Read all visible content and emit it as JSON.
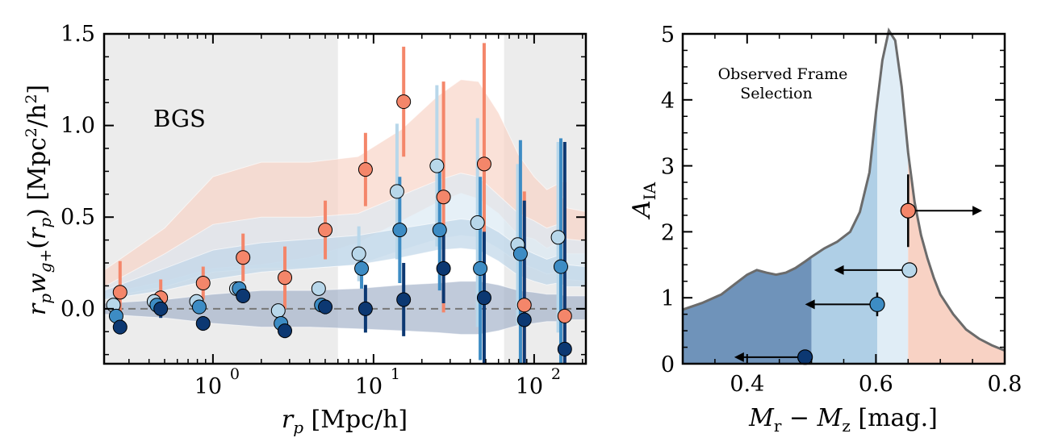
{
  "colors": {
    "orange": "#F4866A",
    "light_blue": "#B8D7EA",
    "mid_blue": "#3D8CC4",
    "dark_blue": "#0C3872",
    "shade_orange": "#F8D4C8",
    "shade_light": "#DCE9F3",
    "shade_mid": "#BFD6E8",
    "shade_dark": "#A5B4CB",
    "excluded_region": "#ECECEC"
  },
  "chart_data": [
    {
      "type": "scatter",
      "annotation": "BGS",
      "xlabel": "r_p [Mpc/h]",
      "ylabel": "r_p w_g+(r_p) [Mpc²/h²]",
      "xscale": "log",
      "xlim": [
        0.21,
        210
      ],
      "ylim": [
        -0.3,
        1.5
      ],
      "xticks": [
        {
          "value": 1,
          "label": "10",
          "exp": "0"
        },
        {
          "value": 10,
          "label": "10",
          "exp": "1"
        },
        {
          "value": 100,
          "label": "10",
          "exp": "2"
        }
      ],
      "yticks": [
        {
          "value": 0.0,
          "label": "0.0"
        },
        {
          "value": 0.5,
          "label": "0.5"
        },
        {
          "value": 1.0,
          "label": "1.0"
        },
        {
          "value": 1.5,
          "label": "1.5"
        }
      ],
      "zero_line": true,
      "excluded_ranges": [
        [
          0.21,
          6.0
        ],
        [
          65,
          210
        ]
      ],
      "series": [
        {
          "color": "orange",
          "offset": 1.1,
          "x": [
            0.24,
            0.43,
            0.79,
            1.4,
            2.55,
            4.55,
            8.1,
            14.0,
            24.8,
            44.4,
            79.0,
            141.0
          ],
          "y": [
            0.09,
            0.06,
            0.14,
            0.28,
            0.17,
            0.43,
            0.76,
            1.13,
            0.61,
            0.79,
            0.02,
            -0.04
          ],
          "err": [
            0.17,
            0.1,
            0.09,
            0.13,
            0.17,
            0.16,
            0.2,
            0.3,
            0.63,
            0.66,
            0.62,
            0.73
          ],
          "band_x": [
            0.21,
            0.5,
            1.0,
            2.0,
            4.0,
            8.0,
            15.0,
            25.0,
            35.0,
            45.0,
            60.0,
            80.0,
            100.0,
            120.0,
            140.0,
            160.0,
            210.0
          ],
          "band_lo": [
            0.08,
            0.15,
            0.22,
            0.24,
            0.28,
            0.36,
            0.48,
            0.58,
            0.63,
            0.6,
            0.52,
            0.4,
            0.38,
            0.33,
            0.36,
            0.3,
            0.3
          ],
          "band_hi": [
            0.21,
            0.44,
            0.72,
            0.8,
            0.8,
            0.83,
            0.98,
            1.16,
            1.25,
            1.24,
            1.07,
            0.84,
            0.72,
            0.65,
            0.68,
            0.55,
            0.53
          ]
        },
        {
          "color": "light_blue",
          "offset": 1.0,
          "x": [
            0.24,
            0.43,
            0.79,
            1.4,
            2.55,
            4.55,
            8.1,
            14.0,
            24.8,
            44.4,
            79.0,
            141.0
          ],
          "y": [
            0.02,
            0.04,
            0.04,
            0.11,
            -0.01,
            0.11,
            0.3,
            0.64,
            0.78,
            0.47,
            0.35,
            0.39
          ],
          "err": [
            0.04,
            0.04,
            0.04,
            0.04,
            0.04,
            0.04,
            0.15,
            0.37,
            0.44,
            0.57,
            0.44,
            0.52
          ],
          "band_x": [
            0.21,
            0.5,
            1.0,
            2.0,
            4.0,
            8.0,
            15.0,
            25.0,
            35.0,
            45.0,
            60.0,
            80.0,
            100.0,
            120.0,
            140.0,
            160.0,
            210.0
          ],
          "band_lo": [
            0.06,
            0.12,
            0.2,
            0.22,
            0.22,
            0.24,
            0.32,
            0.38,
            0.4,
            0.39,
            0.33,
            0.25,
            0.22,
            0.19,
            0.2,
            0.16,
            0.15
          ],
          "band_hi": [
            0.12,
            0.3,
            0.46,
            0.5,
            0.5,
            0.52,
            0.62,
            0.7,
            0.74,
            0.72,
            0.62,
            0.52,
            0.48,
            0.44,
            0.46,
            0.38,
            0.37
          ]
        },
        {
          "color": "mid_blue",
          "offset": 1.04,
          "x": [
            0.24,
            0.43,
            0.79,
            1.4,
            2.55,
            4.55,
            8.1,
            14.0,
            24.8,
            44.4,
            79.0,
            141.0
          ],
          "y": [
            -0.04,
            0.02,
            0.01,
            0.11,
            -0.08,
            0.02,
            0.22,
            0.43,
            0.43,
            0.22,
            0.3,
            0.23
          ],
          "err": [
            0.04,
            0.04,
            0.04,
            0.04,
            0.04,
            0.04,
            0.11,
            0.29,
            0.33,
            0.5,
            0.62,
            0.7
          ],
          "band_x": [
            0.21,
            0.5,
            1.0,
            2.0,
            4.0,
            8.0,
            15.0,
            25.0,
            35.0,
            45.0,
            60.0,
            80.0,
            100.0,
            120.0,
            140.0,
            160.0,
            210.0
          ],
          "band_lo": [
            0.05,
            0.1,
            0.16,
            0.2,
            0.22,
            0.24,
            0.28,
            0.32,
            0.33,
            0.32,
            0.26,
            0.18,
            0.15,
            0.13,
            0.14,
            0.12,
            0.12
          ],
          "band_hi": [
            0.1,
            0.22,
            0.32,
            0.36,
            0.38,
            0.4,
            0.44,
            0.47,
            0.49,
            0.48,
            0.42,
            0.34,
            0.3,
            0.27,
            0.29,
            0.24,
            0.23
          ]
        },
        {
          "color": "dark_blue",
          "offset": 1.1,
          "x": [
            0.24,
            0.43,
            0.79,
            1.4,
            2.55,
            4.55,
            8.1,
            14.0,
            24.8,
            44.4,
            79.0,
            141.0
          ],
          "y": [
            -0.1,
            0.0,
            -0.08,
            0.07,
            -0.12,
            0.01,
            0.0,
            0.05,
            0.22,
            0.06,
            -0.06,
            -0.22
          ],
          "err": [
            0.04,
            0.05,
            0.04,
            0.04,
            0.04,
            0.04,
            0.13,
            0.2,
            0.19,
            0.36,
            0.65,
            1.13
          ],
          "band_x": [
            0.21,
            0.5,
            1.0,
            2.0,
            4.0,
            8.0,
            15.0,
            25.0,
            35.0,
            45.0,
            60.0,
            80.0,
            100.0,
            120.0,
            140.0,
            160.0,
            210.0
          ],
          "band_lo": [
            -0.03,
            -0.05,
            -0.08,
            -0.1,
            -0.1,
            -0.11,
            -0.12,
            -0.13,
            -0.14,
            -0.14,
            -0.12,
            -0.09,
            -0.08,
            -0.07,
            -0.07,
            -0.06,
            -0.06
          ],
          "band_hi": [
            0.03,
            0.05,
            0.08,
            0.1,
            0.1,
            0.11,
            0.13,
            0.14,
            0.15,
            0.15,
            0.13,
            0.1,
            0.09,
            0.08,
            0.08,
            0.07,
            0.07
          ]
        }
      ]
    },
    {
      "type": "area",
      "annotation": [
        "Observed Frame",
        "Selection"
      ],
      "xlabel": "M_r − M_z [mag.]",
      "ylabel": "A_IA",
      "xlim": [
        0.3,
        0.8
      ],
      "ylim": [
        0,
        5
      ],
      "xticks": [
        {
          "value": 0.4,
          "label": "0.4"
        },
        {
          "value": 0.6,
          "label": "0.6"
        },
        {
          "value": 0.8,
          "label": "0.8"
        }
      ],
      "yticks": [
        {
          "value": 0,
          "label": "0"
        },
        {
          "value": 1,
          "label": "1"
        },
        {
          "value": 2,
          "label": "2"
        },
        {
          "value": 3,
          "label": "3"
        },
        {
          "value": 4,
          "label": "4"
        },
        {
          "value": 5,
          "label": "5"
        }
      ],
      "distribution": {
        "x": [
          0.3,
          0.33,
          0.36,
          0.38,
          0.4,
          0.415,
          0.43,
          0.445,
          0.46,
          0.475,
          0.49,
          0.5,
          0.52,
          0.54,
          0.56,
          0.575,
          0.59,
          0.6,
          0.61,
          0.62,
          0.63,
          0.64,
          0.65,
          0.66,
          0.67,
          0.68,
          0.69,
          0.7,
          0.72,
          0.74,
          0.76,
          0.78,
          0.8
        ],
        "y": [
          0.82,
          0.92,
          1.05,
          1.2,
          1.35,
          1.42,
          1.38,
          1.35,
          1.38,
          1.45,
          1.55,
          1.62,
          1.75,
          1.85,
          2.0,
          2.3,
          2.9,
          3.8,
          4.6,
          5.05,
          4.9,
          4.2,
          3.2,
          2.45,
          1.95,
          1.6,
          1.3,
          1.05,
          0.75,
          0.52,
          0.38,
          0.28,
          0.2
        ]
      },
      "regions": [
        {
          "from": 0.3,
          "to": 0.5,
          "color": "#6F93BA"
        },
        {
          "from": 0.5,
          "to": 0.602,
          "color": "#AFCFE6"
        },
        {
          "from": 0.602,
          "to": 0.65,
          "color": "#E0EDF6"
        },
        {
          "from": 0.65,
          "to": 0.8,
          "color": "#F8D2C4"
        }
      ],
      "points": [
        {
          "x": 0.65,
          "y": 2.32,
          "err": 0.55,
          "arrow_to": 0.765,
          "color": "orange"
        },
        {
          "x": 0.652,
          "y": 1.42,
          "err": 0,
          "arrow_to": 0.535,
          "color": "light_blue"
        },
        {
          "x": 0.602,
          "y": 0.9,
          "err": 0.18,
          "arrow_to": 0.49,
          "color": "mid_blue"
        },
        {
          "x": 0.49,
          "y": 0.1,
          "err": 0.1,
          "arrow_to": 0.38,
          "color": "dark_blue"
        }
      ]
    }
  ]
}
